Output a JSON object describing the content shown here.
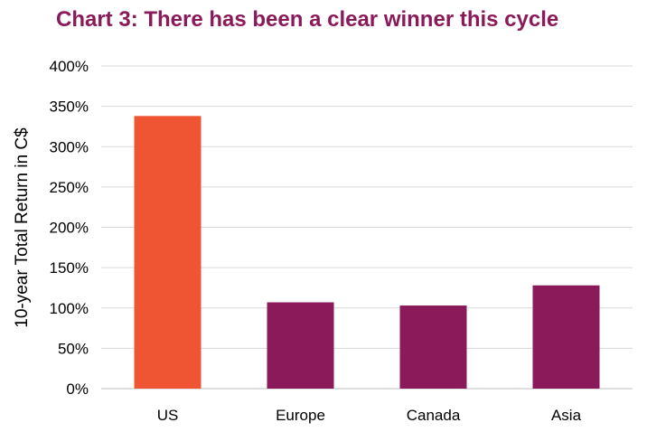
{
  "chart_data": {
    "type": "bar",
    "title": "Chart 3: There has been a clear winner this cycle",
    "xlabel": "",
    "ylabel": "10-year  Total Return in C$",
    "categories": [
      "US",
      "Europe",
      "Canada",
      "Asia"
    ],
    "values": [
      338,
      107,
      103,
      128
    ],
    "ylim": [
      0,
      400
    ],
    "yticks": [
      "0%",
      "50%",
      "100%",
      "150%",
      "200%",
      "250%",
      "300%",
      "350%",
      "400%"
    ],
    "grid": true,
    "legend": "none",
    "colors": {
      "highlight": "#ef5533",
      "bar": "#8b1a5a",
      "title": "#8b1a5a",
      "gridline": "#d9d9d9"
    },
    "bar_colors": [
      "#ef5533",
      "#8b1a5a",
      "#8b1a5a",
      "#8b1a5a"
    ]
  }
}
